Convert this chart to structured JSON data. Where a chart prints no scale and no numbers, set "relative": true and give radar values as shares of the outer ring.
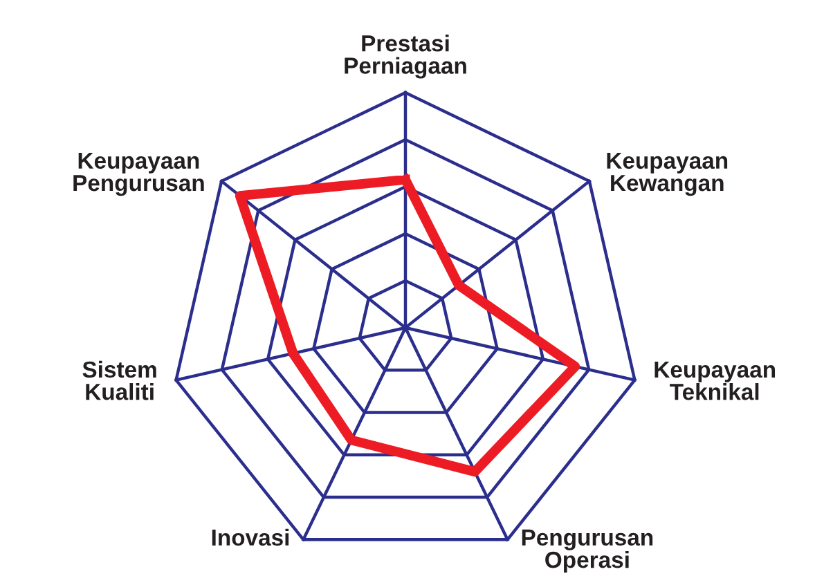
{
  "chart_data": {
    "type": "radar",
    "relative": true,
    "grid": true,
    "marker": "none",
    "line_style": "solid",
    "categories": [
      "Prestasi\nPerniagaan",
      "Keupayaan\nKewangan",
      "Keupayaan\nTeknikal",
      "Pengurusan\nOperasi",
      "Inovasi",
      "Sistem\nKualiti",
      "Keupayaan\nPengurusan"
    ],
    "series": [
      {
        "color": "#ed1c24",
        "values": [
          0.63,
          0.29,
          0.74,
          0.68,
          0.53,
          0.49,
          0.9
        ]
      }
    ]
  }
}
